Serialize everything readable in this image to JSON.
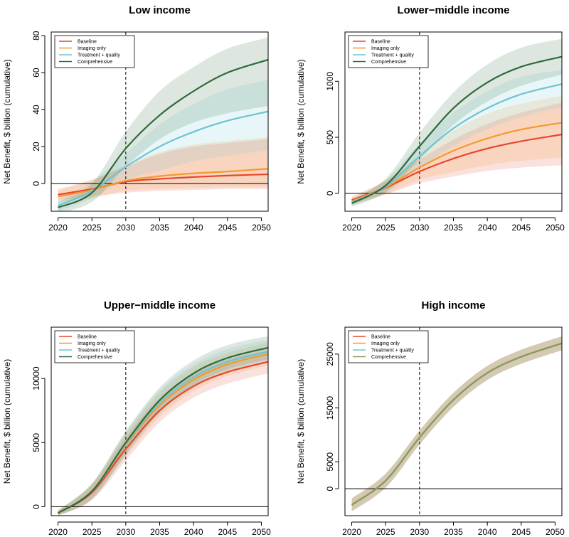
{
  "chart_data": [
    {
      "type": "line",
      "title": "Low income",
      "xlabel": "",
      "ylabel": "Net Benefit, $ billion (cumulative)",
      "xlim": [
        2019,
        2051
      ],
      "ylim": [
        -15,
        82
      ],
      "xticks": [
        2020,
        2025,
        2030,
        2035,
        2040,
        2045,
        2050
      ],
      "yticks": [
        0,
        20,
        40,
        60,
        80
      ],
      "vline": 2030,
      "hline": 0,
      "legend": [
        "Baseline",
        "Imaging only",
        "Treatment + quality",
        "Comprehensive"
      ],
      "x": [
        2020,
        2025,
        2030,
        2035,
        2040,
        2045,
        2051
      ],
      "series": [
        {
          "name": "Baseline",
          "color": "#e8452c",
          "values": [
            -6,
            -3,
            1,
            2.5,
            3.5,
            4.3,
            5
          ],
          "lower": [
            -9,
            -7,
            -5,
            -4,
            -3.5,
            -3,
            -3
          ],
          "upper": [
            -3,
            2,
            9,
            16,
            20,
            22,
            24
          ]
        },
        {
          "name": "Imaging only",
          "color": "#f29a2e",
          "values": [
            -7,
            -3.5,
            1.5,
            4,
            5.5,
            6.5,
            8
          ],
          "lower": [
            -10,
            -8,
            -4,
            -3,
            -2.5,
            -2,
            -2
          ],
          "upper": [
            -4,
            2,
            10,
            17,
            21,
            23,
            25
          ]
        },
        {
          "name": "Treatment + quality",
          "color": "#6ec4d4",
          "values": [
            -12,
            -4,
            9,
            20,
            28,
            34,
            39
          ],
          "lower": [
            -15,
            -8,
            2,
            7,
            12,
            15,
            18
          ],
          "upper": [
            -9,
            1,
            16,
            32,
            43,
            51,
            56
          ]
        },
        {
          "name": "Comprehensive",
          "color": "#2e6b3a",
          "values": [
            -13,
            -5,
            19,
            37,
            50,
            60,
            67
          ],
          "lower": [
            -16,
            -10,
            9,
            24,
            33,
            38,
            42
          ],
          "upper": [
            -10,
            0,
            28,
            50,
            63,
            73,
            79
          ]
        }
      ]
    },
    {
      "type": "line",
      "title": "Lower−middle income",
      "xlabel": "",
      "ylabel": "Net Benefit, $ billion (cumulative)",
      "xlim": [
        2019,
        2051
      ],
      "ylim": [
        -160,
        1440
      ],
      "xticks": [
        2020,
        2025,
        2030,
        2035,
        2040,
        2045,
        2050
      ],
      "yticks": [
        0,
        500,
        1000
      ],
      "vline": 2030,
      "hline": 0,
      "legend": [
        "Baseline",
        "Imaging only",
        "Treatment + quality",
        "Comprehensive"
      ],
      "x": [
        2020,
        2025,
        2030,
        2035,
        2040,
        2045,
        2051
      ],
      "series": [
        {
          "name": "Baseline",
          "color": "#e8452c",
          "values": [
            -60,
            50,
            195,
            310,
            400,
            465,
            525
          ],
          "lower": [
            -90,
            -10,
            90,
            150,
            200,
            230,
            250
          ],
          "upper": [
            -30,
            110,
            300,
            480,
            620,
            720,
            810
          ]
        },
        {
          "name": "Imaging only",
          "color": "#f29a2e",
          "values": [
            -70,
            55,
            230,
            380,
            490,
            570,
            630
          ],
          "lower": [
            -100,
            -10,
            120,
            190,
            250,
            290,
            320
          ],
          "upper": [
            -40,
            120,
            340,
            560,
            710,
            800,
            870
          ]
        },
        {
          "name": "Treatment + quality",
          "color": "#6ec4d4",
          "values": [
            -80,
            60,
            330,
            580,
            760,
            885,
            975
          ],
          "lower": [
            -110,
            0,
            220,
            420,
            570,
            680,
            770
          ],
          "upper": [
            -50,
            120,
            440,
            720,
            910,
            1040,
            1100
          ]
        },
        {
          "name": "Comprehensive",
          "color": "#2e6b3a",
          "values": [
            -90,
            70,
            420,
            760,
            990,
            1130,
            1220
          ],
          "lower": [
            -120,
            10,
            300,
            610,
            820,
            960,
            1060
          ],
          "upper": [
            -60,
            130,
            540,
            900,
            1150,
            1300,
            1380
          ]
        }
      ]
    },
    {
      "type": "line",
      "title": "Upper−middle income",
      "xlabel": "",
      "ylabel": "Net Benefit, $ billion (cumulative)",
      "xlim": [
        2019,
        2051
      ],
      "ylim": [
        -700,
        14000
      ],
      "xticks": [
        2020,
        2025,
        2030,
        2035,
        2040,
        2045,
        2050
      ],
      "yticks": [
        0,
        5000,
        10000
      ],
      "vline": 2030,
      "hline": 0,
      "legend": [
        "Baseline",
        "Imaging only",
        "Treatment + quality",
        "Comprehensive"
      ],
      "x": [
        2020,
        2025,
        2030,
        2035,
        2040,
        2045,
        2051
      ],
      "series": [
        {
          "name": "Baseline",
          "color": "#e8452c",
          "values": [
            -500,
            1100,
            4500,
            7500,
            9400,
            10500,
            11300
          ],
          "lower": [
            -700,
            500,
            3600,
            6600,
            8500,
            9600,
            10400
          ],
          "upper": [
            -300,
            1700,
            5400,
            8500,
            10400,
            11500,
            12200
          ]
        },
        {
          "name": "Imaging only",
          "color": "#f29a2e",
          "values": [
            -500,
            1200,
            4800,
            7900,
            9900,
            11100,
            11900
          ],
          "lower": [
            -700,
            600,
            3900,
            7000,
            9000,
            10200,
            11000
          ],
          "upper": [
            -300,
            1800,
            5700,
            8900,
            10900,
            12000,
            12800
          ]
        },
        {
          "name": "Treatment + quality",
          "color": "#6ec4d4",
          "values": [
            -500,
            1200,
            4900,
            8100,
            10100,
            11300,
            12100
          ],
          "lower": [
            -700,
            600,
            4000,
            7200,
            9200,
            10400,
            11200
          ],
          "upper": [
            -300,
            1800,
            5800,
            9100,
            11100,
            12300,
            13000
          ]
        },
        {
          "name": "Comprehensive",
          "color": "#2e6b3a",
          "values": [
            -500,
            1200,
            5000,
            8300,
            10400,
            11600,
            12400
          ],
          "lower": [
            -700,
            600,
            4100,
            7400,
            9500,
            10700,
            11500
          ],
          "upper": [
            -300,
            1800,
            5900,
            9300,
            11400,
            12600,
            13300
          ]
        }
      ]
    },
    {
      "type": "line",
      "title": "High income",
      "xlabel": "",
      "ylabel": "Net Benefit, $ billion (cumulative)",
      "xlim": [
        2019,
        2051
      ],
      "ylim": [
        -5000,
        30000
      ],
      "xticks": [
        2020,
        2025,
        2030,
        2035,
        2040,
        2045,
        2050
      ],
      "yticks": [
        0,
        5000,
        15000,
        25000
      ],
      "vline": 2030,
      "hline": 0,
      "legend": [
        "Baseline",
        "Imaging only",
        "Treatment + quality",
        "Comprehensive"
      ],
      "x": [
        2020,
        2025,
        2030,
        2035,
        2040,
        2045,
        2051
      ],
      "series": [
        {
          "name": "Baseline",
          "color": "#e8452c",
          "values": [
            -3000,
            1500,
            9500,
            16500,
            21500,
            24500,
            27000
          ],
          "lower": [
            -4200,
            200,
            8200,
            15200,
            20200,
            23200,
            25700
          ],
          "upper": [
            -1800,
            2800,
            10800,
            17800,
            22800,
            25800,
            28300
          ]
        },
        {
          "name": "Imaging only",
          "color": "#f29a2e",
          "values": [
            -3000,
            1500,
            9500,
            16500,
            21500,
            24500,
            27000
          ],
          "lower": [
            -4200,
            200,
            8200,
            15200,
            20200,
            23200,
            25700
          ],
          "upper": [
            -1800,
            2800,
            10800,
            17800,
            22800,
            25800,
            28300
          ]
        },
        {
          "name": "Treatment + quality",
          "color": "#6ec4d4",
          "values": [
            -3000,
            1500,
            9500,
            16500,
            21500,
            24500,
            27000
          ],
          "lower": [
            -4200,
            200,
            8200,
            15200,
            20200,
            23200,
            25700
          ],
          "upper": [
            -1800,
            2800,
            10800,
            17800,
            22800,
            25800,
            28300
          ]
        },
        {
          "name": "Comprehensive",
          "color": "#8a9a5b",
          "values": [
            -3000,
            1500,
            9500,
            16500,
            21500,
            24500,
            27000
          ],
          "lower": [
            -4200,
            200,
            8200,
            15200,
            20200,
            23200,
            25700
          ],
          "upper": [
            -1800,
            2800,
            10800,
            17800,
            22800,
            25800,
            28300
          ]
        }
      ]
    }
  ]
}
